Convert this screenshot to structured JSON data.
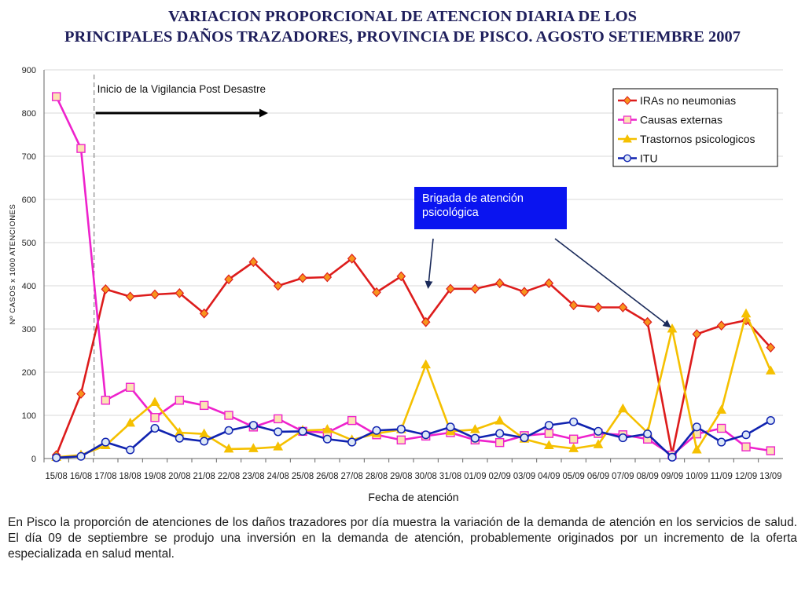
{
  "title": {
    "line1": "VARIACION PROPORCIONAL DE ATENCION DIARIA DE LOS",
    "line2": "PRINCIPALES DAÑOS TRAZADORES, PROVINCIA DE PISCO. AGOSTO SETIEMBRE 2007"
  },
  "caption": "En Pisco la proporción de atenciones de los daños trazadores por día muestra la variación de la demanda de atención en los servicios de salud. El día 09 de septiembre se produjo una inversión en la demanda de atención, probablemente originados por un incremento de la oferta especializada en salud mental.",
  "chart_data": {
    "type": "line",
    "xlabel": "Fecha de atención",
    "ylabel": "Nº CASOS x 1000 ATENCIONES",
    "ylim": [
      0,
      900
    ],
    "yticks": [
      0,
      100,
      200,
      300,
      400,
      500,
      600,
      700,
      800,
      900
    ],
    "grid": true,
    "legend_position": "top-right",
    "categories": [
      "15/08",
      "16/08",
      "17/08",
      "18/08",
      "19/08",
      "20/08",
      "21/08",
      "22/08",
      "23/08",
      "24/08",
      "25/08",
      "26/08",
      "27/08",
      "28/08",
      "29/08",
      "30/08",
      "31/08",
      "01/09",
      "02/09",
      "03/09",
      "04/09",
      "05/09",
      "06/09",
      "07/09",
      "08/09",
      "09/09",
      "10/09",
      "11/09",
      "12/09",
      "13/09"
    ],
    "series": [
      {
        "name": "IRAs no neumonias",
        "color": "#dd1c1c",
        "marker": "diamond",
        "marker_fill": "#f7941d",
        "values": [
          8,
          150,
          392,
          375,
          380,
          383,
          336,
          415,
          455,
          400,
          418,
          420,
          463,
          385,
          422,
          316,
          393,
          393,
          406,
          386,
          406,
          355,
          350,
          350,
          316,
          10,
          288,
          308,
          320,
          257
        ]
      },
      {
        "name": "Causas externas",
        "color": "#ee22cc",
        "marker": "square",
        "marker_fill": "#fbe3b4",
        "values": [
          838,
          718,
          135,
          165,
          95,
          135,
          123,
          100,
          73,
          92,
          63,
          60,
          88,
          55,
          43,
          52,
          60,
          43,
          37,
          53,
          58,
          45,
          58,
          55,
          45,
          8,
          57,
          70,
          27,
          18
        ]
      },
      {
        "name": "Trastornos psicologicos",
        "color": "#f5c000",
        "marker": "triangle",
        "marker_fill": "#f5c000",
        "values": [
          3,
          8,
          30,
          82,
          130,
          60,
          57,
          22,
          23,
          27,
          65,
          67,
          43,
          58,
          67,
          217,
          63,
          67,
          87,
          45,
          30,
          23,
          32,
          115,
          60,
          300,
          20,
          112,
          335,
          203
        ]
      },
      {
        "name": "ITU",
        "color": "#1023b0",
        "marker": "circle",
        "marker_fill": "#dde8f7",
        "values": [
          2,
          5,
          38,
          20,
          70,
          47,
          40,
          65,
          77,
          62,
          63,
          45,
          38,
          65,
          68,
          55,
          73,
          47,
          58,
          48,
          77,
          85,
          63,
          48,
          57,
          3,
          73,
          38,
          55,
          88
        ]
      }
    ],
    "annotations": [
      {
        "text": "Inicio de la Vigilancia Post Desastre",
        "at_category": "17/08"
      },
      {
        "text": "Brigada de atención psicológica",
        "points_to": [
          "30/08",
          "09/09"
        ]
      }
    ]
  }
}
